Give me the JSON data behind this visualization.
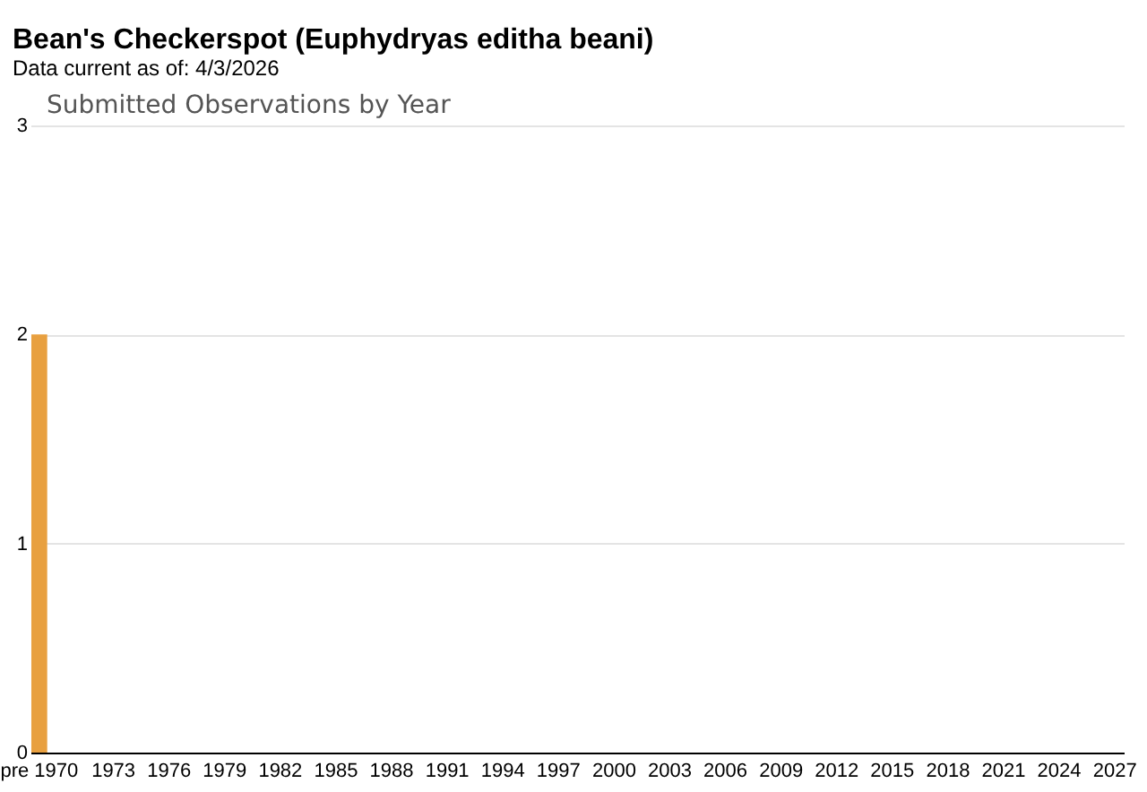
{
  "chart_data": {
    "type": "bar",
    "title": "Bean's Checkerspot   (Euphydryas editha beani)",
    "subtitle": "Data current as of: 4/3/2026",
    "annotations": [
      "Submitted Observations by Year"
    ],
    "categories": [
      "pre 1970",
      null,
      null,
      null,
      "1973",
      null,
      null,
      "1976",
      null,
      null,
      "1979",
      null,
      null,
      "1982",
      null,
      null,
      "1985",
      null,
      null,
      "1988",
      null,
      null,
      "1991",
      null,
      null,
      "1994",
      null,
      null,
      "1997",
      null,
      null,
      "2000",
      null,
      null,
      "2003",
      null,
      null,
      "2006",
      null,
      null,
      "2009",
      null,
      null,
      "2012",
      null,
      null,
      "2015",
      null,
      null,
      "2018",
      null,
      null,
      "2021",
      null,
      null,
      "2024",
      null,
      null,
      "2027"
    ],
    "values": [
      2,
      0,
      0,
      0,
      0,
      0,
      0,
      0,
      0,
      0,
      0,
      0,
      0,
      0,
      0,
      0,
      0,
      0,
      0,
      0,
      0,
      0,
      0,
      0,
      0,
      0,
      0,
      0,
      0,
      0,
      0,
      0,
      0,
      0,
      0,
      0,
      0,
      0,
      0,
      0,
      0,
      0,
      0,
      0,
      0,
      0,
      0,
      0,
      0,
      0,
      0,
      0,
      0,
      0,
      0,
      0,
      0,
      0,
      0
    ],
    "color": "#e8a040",
    "ylim": [
      0,
      3
    ],
    "yticks": [
      0,
      1,
      2,
      3
    ],
    "grid": "y"
  }
}
